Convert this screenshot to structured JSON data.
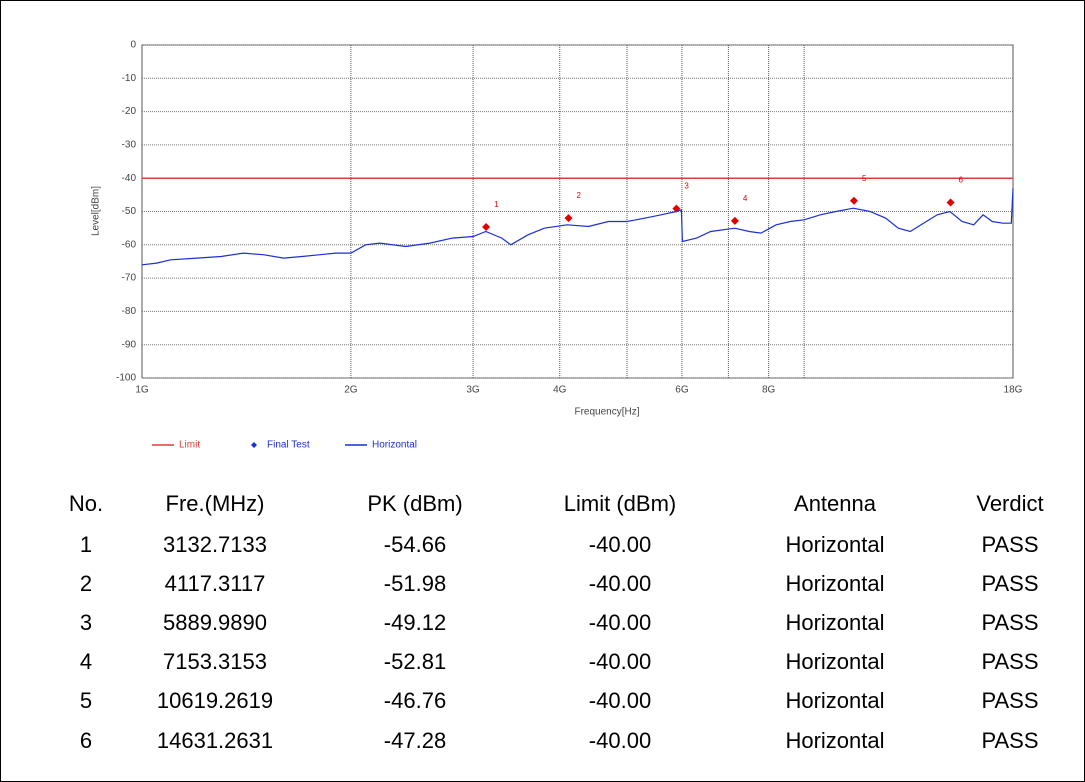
{
  "chart_data": {
    "type": "line",
    "xlabel": "Frequency[Hz]",
    "ylabel": "Level[dBm]",
    "xscale": "log",
    "xlim": [
      1000000000,
      18000000000
    ],
    "xticks": [
      {
        "value": 1000000000,
        "label": "1G"
      },
      {
        "value": 2000000000,
        "label": "2G"
      },
      {
        "value": 3000000000,
        "label": "3G"
      },
      {
        "value": 4000000000,
        "label": "4G"
      },
      {
        "value": 6000000000,
        "label": "6G"
      },
      {
        "value": 8000000000,
        "label": "8G"
      },
      {
        "value": 18000000000,
        "label": "18G"
      }
    ],
    "xminor": [
      5000000000,
      7000000000,
      9000000000
    ],
    "ylim": [
      -100,
      0
    ],
    "yticks": [
      0,
      -10,
      -20,
      -30,
      -40,
      -50,
      -60,
      -70,
      -80,
      -90,
      -100
    ],
    "grid": true,
    "legend": "bottom-left",
    "series": [
      {
        "name": "Limit",
        "color": "#e23b3b",
        "x": [
          1000000000,
          18000000000
        ],
        "values": [
          -40,
          -40
        ]
      },
      {
        "name": "Final Test",
        "color": "#e00000",
        "x": [
          3132713300,
          4117311700,
          5889989000,
          7153315300,
          10619261900,
          14631263100
        ],
        "values": [
          -54.66,
          -51.98,
          -49.12,
          -52.81,
          -46.76,
          -47.28
        ],
        "labels": [
          "1",
          "2",
          "3",
          "4",
          "5",
          "6"
        ]
      },
      {
        "name": "Horizontal",
        "color": "#1a2fd6",
        "x": [
          1000000000,
          1050000000,
          1100000000,
          1200000000,
          1300000000,
          1400000000,
          1500000000,
          1600000000,
          1700000000,
          1800000000,
          1900000000,
          2000000000,
          2100000000,
          2200000000,
          2400000000,
          2600000000,
          2800000000,
          3000000000,
          3130000000,
          3300000000,
          3400000000,
          3600000000,
          3800000000,
          4100000000,
          4400000000,
          4700000000,
          5000000000,
          5300000000,
          5600000000,
          5890000000,
          5990000000,
          6010000000,
          6300000000,
          6600000000,
          7150000000,
          7500000000,
          7800000000,
          8200000000,
          8600000000,
          9000000000,
          9500000000,
          10000000000,
          10600000000,
          11200000000,
          11800000000,
          12300000000,
          12800000000,
          13500000000,
          14000000000,
          14600000000,
          15200000000,
          15800000000,
          16300000000,
          16800000000,
          17400000000,
          17900000000,
          18000000000
        ],
        "values": [
          -66,
          -65.5,
          -64.5,
          -64,
          -63.5,
          -62.5,
          -63,
          -64,
          -63.5,
          -63,
          -62.5,
          -62.5,
          -60,
          -59.5,
          -60.5,
          -59.5,
          -58,
          -57.5,
          -56,
          -58,
          -60,
          -57,
          -55,
          -54,
          -54.5,
          -53,
          -53,
          -52,
          -51,
          -50,
          -49.5,
          -59,
          -58,
          -56,
          -55,
          -56,
          -56.5,
          -54,
          -53,
          -52.5,
          -51,
          -50,
          -49,
          -50,
          -52,
          -55,
          -56,
          -53,
          -51,
          -50,
          -53,
          -54,
          -51,
          -53,
          -53.5,
          -53.5,
          -43
        ]
      }
    ]
  },
  "table": {
    "columns": [
      "No.",
      "Fre.(MHz)",
      "PK (dBm)",
      "Limit (dBm)",
      "Antenna",
      "Verdict"
    ],
    "rows": [
      [
        "1",
        "3132.7133",
        "-54.66",
        "-40.00",
        "Horizontal",
        "PASS"
      ],
      [
        "2",
        "4117.3117",
        "-51.98",
        "-40.00",
        "Horizontal",
        "PASS"
      ],
      [
        "3",
        "5889.9890",
        "-49.12",
        "-40.00",
        "Horizontal",
        "PASS"
      ],
      [
        "4",
        "7153.3153",
        "-52.81",
        "-40.00",
        "Horizontal",
        "PASS"
      ],
      [
        "5",
        "10619.2619",
        "-46.76",
        "-40.00",
        "Horizontal",
        "PASS"
      ],
      [
        "6",
        "14631.2631",
        "-47.28",
        "-40.00",
        "Horizontal",
        "PASS"
      ]
    ]
  }
}
